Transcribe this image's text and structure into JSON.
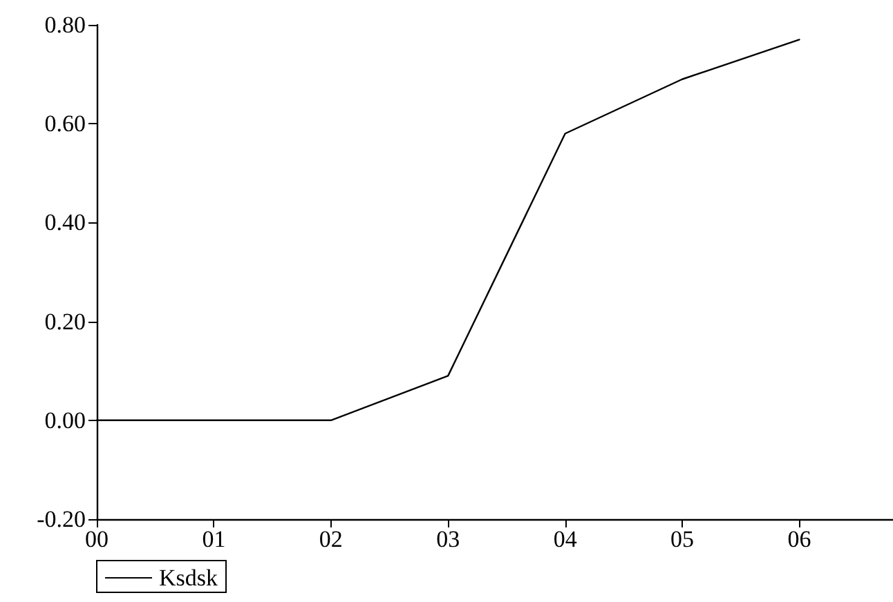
{
  "chart_data": {
    "type": "line",
    "x": [
      0,
      1,
      2,
      3,
      4,
      5,
      6
    ],
    "series": [
      {
        "name": "Ksdsk",
        "color": "#000000",
        "values": [
          0,
          0,
          0,
          0.09,
          0.58,
          0.69,
          0.77
        ]
      }
    ],
    "xlim": [
      0,
      6.8
    ],
    "xticks": [
      {
        "value": 0,
        "label": "00"
      },
      {
        "value": 1,
        "label": "01"
      },
      {
        "value": 2,
        "label": "02"
      },
      {
        "value": 3,
        "label": "03"
      },
      {
        "value": 4,
        "label": "04"
      },
      {
        "value": 5,
        "label": "05"
      },
      {
        "value": 6,
        "label": "06"
      }
    ],
    "ylim": [
      -0.2,
      0.8
    ],
    "yticks": [
      {
        "value": -0.2,
        "label": "-0.20"
      },
      {
        "value": 0,
        "label": "0.00"
      },
      {
        "value": 0.2,
        "label": "0.20"
      },
      {
        "value": 0.4,
        "label": "0.40"
      },
      {
        "value": 0.6,
        "label": "0.60"
      },
      {
        "value": 0.8,
        "label": "0.80"
      }
    ],
    "grid": false,
    "legend": "bottom left",
    "marker": "none",
    "line_style": "solid"
  }
}
